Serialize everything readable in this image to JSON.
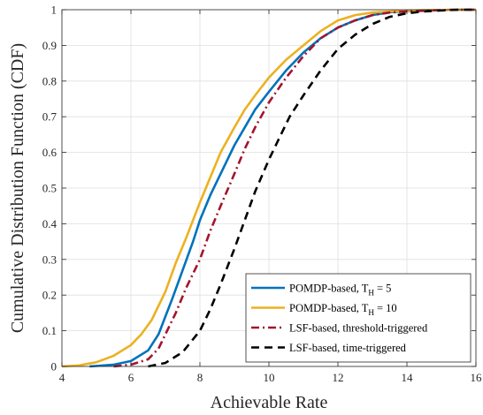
{
  "chart_data": {
    "type": "line",
    "xlabel": "Achievable Rate",
    "ylabel": "Cumulative Distribution Function (CDF)",
    "xlim": [
      4,
      16
    ],
    "ylim": [
      0,
      1
    ],
    "xticks": [
      4,
      6,
      8,
      10,
      12,
      14,
      16
    ],
    "yticks": [
      0,
      0.1,
      0.2,
      0.3,
      0.4,
      0.5,
      0.6,
      0.7,
      0.8,
      0.9,
      1
    ],
    "ytick_labels": [
      "0",
      "0.1",
      "0.2",
      "0.3",
      "0.4",
      "0.5",
      "0.6",
      "0.7",
      "0.8",
      "0.9",
      "1"
    ],
    "grid": true,
    "legend_position": "bottom-right",
    "series": [
      {
        "name": "POMDP-based, T",
        "name_sub": "H",
        "name_suffix": " = 5",
        "color": "#0072BD",
        "dash": "solid",
        "x": [
          4.8,
          5.5,
          6.0,
          6.5,
          6.8,
          7.0,
          7.2,
          7.5,
          7.8,
          8.0,
          8.3,
          8.6,
          9.0,
          9.3,
          9.6,
          10.0,
          10.5,
          11.0,
          11.5,
          12.0,
          12.5,
          13.0,
          13.5,
          14.0,
          14.5,
          15.0,
          15.5,
          16.0
        ],
        "y": [
          0.0,
          0.005,
          0.015,
          0.045,
          0.09,
          0.14,
          0.19,
          0.27,
          0.35,
          0.41,
          0.48,
          0.54,
          0.62,
          0.67,
          0.72,
          0.77,
          0.83,
          0.88,
          0.92,
          0.95,
          0.97,
          0.985,
          0.993,
          0.996,
          0.998,
          0.999,
          1.0,
          1.0
        ]
      },
      {
        "name": "POMDP-based, T",
        "name_sub": "H",
        "name_suffix": " = 10",
        "color": "#EDB120",
        "dash": "solid",
        "x": [
          4.0,
          4.5,
          5.0,
          5.5,
          6.0,
          6.3,
          6.6,
          7.0,
          7.3,
          7.6,
          8.0,
          8.3,
          8.6,
          9.0,
          9.3,
          9.6,
          10.0,
          10.5,
          11.0,
          11.5,
          12.0,
          12.5,
          13.0,
          13.5,
          14.0,
          14.5,
          15.0,
          15.5,
          16.0
        ],
        "y": [
          0.0,
          0.003,
          0.012,
          0.03,
          0.06,
          0.09,
          0.13,
          0.21,
          0.29,
          0.36,
          0.46,
          0.53,
          0.6,
          0.67,
          0.72,
          0.76,
          0.81,
          0.86,
          0.9,
          0.94,
          0.97,
          0.985,
          0.992,
          0.995,
          0.997,
          0.999,
          0.999,
          1.0,
          1.0
        ]
      },
      {
        "name": "LSF-based, threshold-triggered",
        "color": "#A2142F",
        "dash": "dashdot",
        "x": [
          5.5,
          6.0,
          6.5,
          6.8,
          7.0,
          7.3,
          7.6,
          8.0,
          8.3,
          8.6,
          9.0,
          9.3,
          9.6,
          10.0,
          10.5,
          11.0,
          11.5,
          12.0,
          12.5,
          13.0,
          13.5,
          14.0,
          14.5,
          15.0,
          15.5,
          16.0
        ],
        "y": [
          0.0,
          0.005,
          0.02,
          0.05,
          0.09,
          0.15,
          0.22,
          0.3,
          0.38,
          0.45,
          0.54,
          0.61,
          0.67,
          0.74,
          0.81,
          0.87,
          0.92,
          0.95,
          0.97,
          0.985,
          0.992,
          0.995,
          0.997,
          0.999,
          1.0,
          1.0
        ]
      },
      {
        "name": "LSF-based, time-triggered",
        "color": "#000000",
        "dash": "dashed",
        "x": [
          6.5,
          7.0,
          7.5,
          8.0,
          8.3,
          8.6,
          9.0,
          9.3,
          9.6,
          10.0,
          10.3,
          10.6,
          11.0,
          11.5,
          12.0,
          12.5,
          13.0,
          13.5,
          14.0,
          14.5,
          15.0,
          15.5,
          16.0
        ],
        "y": [
          0.0,
          0.01,
          0.04,
          0.1,
          0.16,
          0.23,
          0.33,
          0.41,
          0.49,
          0.58,
          0.64,
          0.7,
          0.76,
          0.83,
          0.89,
          0.93,
          0.96,
          0.98,
          0.99,
          0.995,
          0.998,
          1.0,
          1.0
        ]
      }
    ]
  }
}
